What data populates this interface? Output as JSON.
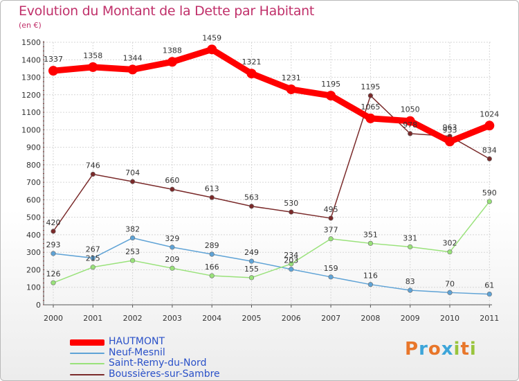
{
  "chart_data": {
    "type": "line",
    "title": "Evolution du Montant de la Dette par Habitant",
    "subtitle": "(en €)",
    "x": [
      "2000",
      "2001",
      "2002",
      "2003",
      "2004",
      "2005",
      "2006",
      "2007",
      "2008",
      "2009",
      "2010",
      "2011"
    ],
    "ylim": [
      0,
      1500
    ],
    "yticks": [
      0,
      100,
      200,
      300,
      400,
      500,
      600,
      700,
      800,
      900,
      1000,
      1100,
      1200,
      1300,
      1400,
      1500
    ],
    "grid": true,
    "legend_position": "bottom-left",
    "series": [
      {
        "name": "HAUTMONT",
        "color": "#ff0000",
        "values": [
          1337,
          1358,
          1344,
          1388,
          1459,
          1321,
          1231,
          1195,
          1065,
          1050,
          933,
          1024
        ]
      },
      {
        "name": "Neuf-Mesnil",
        "color": "#5fa3d6",
        "values": [
          293,
          267,
          382,
          329,
          289,
          249,
          203,
          159,
          116,
          83,
          70,
          61
        ]
      },
      {
        "name": "Saint-Remy-du-Nord",
        "color": "#99e27a",
        "values": [
          126,
          215,
          253,
          209,
          166,
          155,
          234,
          377,
          351,
          331,
          302,
          590
        ]
      },
      {
        "name": "Boussières-sur-Sambre",
        "color": "#7a2a2a",
        "values": [
          420,
          746,
          704,
          660,
          613,
          563,
          530,
          495,
          1195,
          978,
          963,
          834
        ]
      }
    ]
  },
  "logo": {
    "letters": [
      "P",
      "r",
      "o",
      "x",
      "i",
      "t",
      "i"
    ],
    "colors": [
      "#e8762a",
      "#3da5d9",
      "#e8762a",
      "#3da5d9",
      "#99c43c",
      "#e8762a",
      "#99c43c"
    ]
  }
}
